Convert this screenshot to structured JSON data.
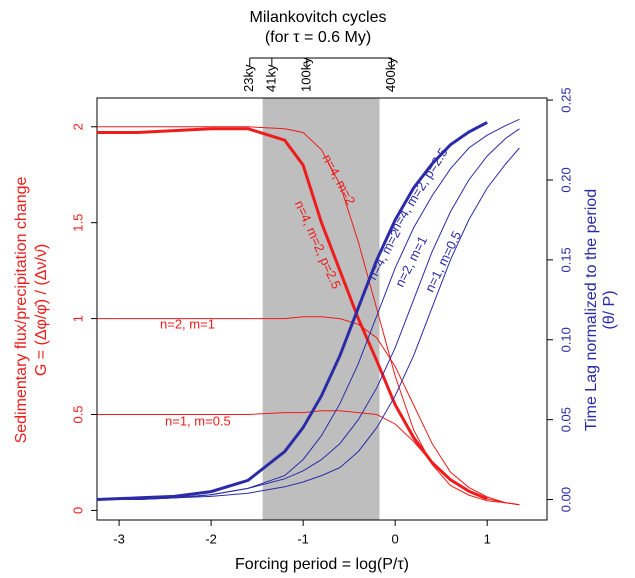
{
  "chart_data": {
    "type": "line",
    "title": "Milankovitch cycles",
    "subtitle": "(for τ = 0.6 My)",
    "x_label": "Forcing period = log(P/τ)",
    "y_label": [
      "Sedimentary flux/precipitation change",
      "G = (Δφ/φ̄) / (Δν/ν̄)"
    ],
    "y2_label": [
      "Time Lag normalized to the period",
      "(θ/ P)"
    ],
    "xlim": [
      -3.24,
      1.65
    ],
    "xticks": [
      -3,
      -2,
      -1,
      0,
      1
    ],
    "ylim": [
      -0.05,
      2.15
    ],
    "yticks": [
      0,
      0.5,
      1,
      1.5,
      2
    ],
    "y2lim": [
      -0.0128,
      0.2513
    ],
    "y2ticks": [
      {
        "value": 0,
        "label": "0.00"
      },
      {
        "value": 0.05,
        "label": "0.05"
      },
      {
        "value": 0.1,
        "label": "0.10"
      },
      {
        "value": 0.15,
        "label": "0.15"
      },
      {
        "value": 0.2,
        "label": "0.20"
      },
      {
        "value": 0.25,
        "label": "0.25"
      }
    ],
    "top_ticks": [
      {
        "value": -1.58,
        "label": "23ky"
      },
      {
        "value": -1.34,
        "label": "41ky"
      },
      {
        "value": -0.96,
        "label": "100ky"
      },
      {
        "value": -0.04,
        "label": "400ky"
      }
    ],
    "shaded_region": [
      -1.44,
      -0.17
    ],
    "x": [
      -3.24,
      -2.8,
      -2.4,
      -2.0,
      -1.6,
      -1.2,
      -1.0,
      -0.8,
      -0.6,
      -0.4,
      -0.2,
      0,
      0.2,
      0.4,
      0.6,
      0.8,
      1.0,
      1.2,
      1.35
    ],
    "series": [
      {
        "name": "n=4, m=2",
        "color": "#ee1c1c",
        "linewidth": 1,
        "values": [
          2.0,
          2.0,
          2.0,
          2.0,
          2.0,
          1.99,
          1.97,
          1.88,
          1.7,
          1.4,
          1.05,
          0.7,
          0.42,
          0.24,
          0.13,
          0.08,
          0.05,
          0.04,
          0.03
        ]
      },
      {
        "name": "n=4, m=2, p=2.5",
        "color": "#ee1c1c",
        "linewidth": 3,
        "values": [
          1.97,
          1.97,
          1.98,
          1.99,
          1.99,
          1.93,
          1.8,
          1.5,
          1.25,
          1.0,
          0.78,
          0.55,
          0.38,
          0.25,
          0.16,
          0.1,
          0.06,
          null,
          null
        ]
      },
      {
        "name": "n=2, m=1",
        "color": "#ee1c1c",
        "linewidth": 1,
        "values": [
          1.0,
          1.0,
          1.0,
          1.0,
          1.0,
          1.0,
          1.01,
          1.01,
          1.0,
          0.97,
          0.9,
          0.75,
          0.55,
          0.35,
          0.2,
          0.12,
          0.07,
          0.04,
          0.03
        ]
      },
      {
        "name": "n=1, m=0.5",
        "color": "#ee1c1c",
        "linewidth": 1,
        "values": [
          0.5,
          0.5,
          0.5,
          0.5,
          0.5,
          0.51,
          0.51,
          0.52,
          0.52,
          0.51,
          0.5,
          0.45,
          0.36,
          0.25,
          0.16,
          0.1,
          0.06,
          0.04,
          0.03
        ]
      },
      {
        "name": "n=4, m=2, p=2.5",
        "color": "#2b2ba8",
        "linewidth": 3,
        "axis": "y2",
        "values": [
          0.0,
          0.001,
          0.002,
          0.005,
          0.012,
          0.03,
          0.045,
          0.065,
          0.09,
          0.12,
          0.15,
          0.175,
          0.195,
          0.21,
          0.222,
          0.23,
          0.236,
          null,
          null
        ]
      },
      {
        "name": "n=4, m=2",
        "color": "#2b2ba8",
        "linewidth": 1,
        "axis": "y2",
        "values": [
          0.0,
          0.0,
          0.001,
          0.003,
          0.007,
          0.015,
          0.025,
          0.04,
          0.06,
          0.085,
          0.115,
          0.145,
          0.17,
          0.19,
          0.207,
          0.22,
          0.228,
          0.234,
          0.238
        ]
      },
      {
        "name": "n=2, m=1",
        "color": "#2b2ba8",
        "linewidth": 1,
        "axis": "y2",
        "values": [
          0.0,
          0.0,
          0.001,
          0.003,
          0.007,
          0.013,
          0.018,
          0.025,
          0.035,
          0.05,
          0.07,
          0.095,
          0.125,
          0.155,
          0.18,
          0.2,
          0.215,
          0.226,
          0.232
        ]
      },
      {
        "name": "n=1, m=0.5",
        "color": "#2b2ba8",
        "linewidth": 1,
        "axis": "y2",
        "values": [
          0.0,
          0.0,
          0.001,
          0.002,
          0.004,
          0.008,
          0.011,
          0.015,
          0.02,
          0.03,
          0.045,
          0.065,
          0.09,
          0.12,
          0.15,
          0.175,
          0.195,
          0.21,
          0.22
        ]
      }
    ]
  }
}
